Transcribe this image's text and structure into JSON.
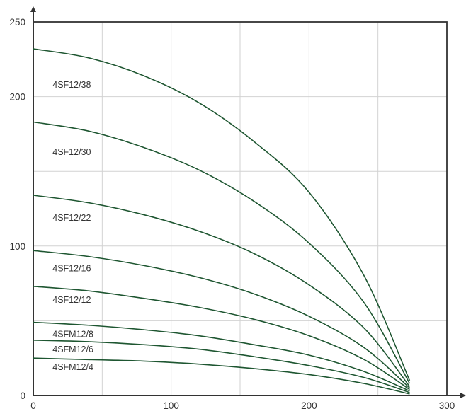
{
  "chart_data": {
    "type": "line",
    "title": "",
    "xlabel": "",
    "ylabel": "",
    "xlim": [
      0,
      300
    ],
    "ylim": [
      0,
      250
    ],
    "x_ticks": [
      0,
      100,
      200,
      300
    ],
    "y_ticks": [
      0,
      100,
      200,
      250
    ],
    "x_tick_labels": [
      "0",
      "100",
      "200",
      "300"
    ],
    "y_tick_labels": [
      "0",
      "100",
      "200",
      "250"
    ],
    "grid": true,
    "legend": "inline labels",
    "line_color": "#1e5631",
    "series": [
      {
        "name": "4SF12/38",
        "points": [
          [
            0,
            232
          ],
          [
            40,
            226
          ],
          [
            80,
            214
          ],
          [
            120,
            196
          ],
          [
            160,
            170
          ],
          [
            200,
            136
          ],
          [
            240,
            80
          ],
          [
            273,
            10
          ]
        ],
        "label_at": [
          14,
          206
        ]
      },
      {
        "name": "4SF12/30",
        "points": [
          [
            0,
            183
          ],
          [
            40,
            177
          ],
          [
            80,
            166
          ],
          [
            120,
            151
          ],
          [
            160,
            130
          ],
          [
            200,
            102
          ],
          [
            240,
            62
          ],
          [
            273,
            8
          ]
        ],
        "label_at": [
          14,
          161
        ]
      },
      {
        "name": "4SF12/22",
        "points": [
          [
            0,
            134
          ],
          [
            40,
            129
          ],
          [
            80,
            121
          ],
          [
            120,
            110
          ],
          [
            160,
            95
          ],
          [
            200,
            74
          ],
          [
            240,
            45
          ],
          [
            273,
            6
          ]
        ],
        "label_at": [
          14,
          117
        ]
      },
      {
        "name": "4SF12/16",
        "points": [
          [
            0,
            97
          ],
          [
            40,
            93
          ],
          [
            80,
            87
          ],
          [
            120,
            79
          ],
          [
            160,
            68
          ],
          [
            200,
            53
          ],
          [
            240,
            32
          ],
          [
            273,
            5
          ]
        ],
        "label_at": [
          14,
          83
        ]
      },
      {
        "name": "4SF12/12",
        "points": [
          [
            0,
            73
          ],
          [
            40,
            70
          ],
          [
            80,
            65
          ],
          [
            120,
            59
          ],
          [
            160,
            51
          ],
          [
            200,
            40
          ],
          [
            240,
            24
          ],
          [
            273,
            4
          ]
        ],
        "label_at": [
          14,
          62
        ]
      },
      {
        "name": "4SFM12/8",
        "points": [
          [
            0,
            49
          ],
          [
            40,
            47
          ],
          [
            80,
            44
          ],
          [
            120,
            40
          ],
          [
            160,
            34
          ],
          [
            200,
            27
          ],
          [
            240,
            16
          ],
          [
            273,
            3
          ]
        ],
        "label_at": [
          14,
          39
        ]
      },
      {
        "name": "4SFM12/6",
        "points": [
          [
            0,
            37
          ],
          [
            40,
            36
          ],
          [
            80,
            34
          ],
          [
            120,
            31
          ],
          [
            160,
            26
          ],
          [
            200,
            20
          ],
          [
            240,
            12
          ],
          [
            273,
            2
          ]
        ],
        "label_at": [
          14,
          29
        ]
      },
      {
        "name": "4SFM12/4",
        "points": [
          [
            0,
            25
          ],
          [
            40,
            24
          ],
          [
            80,
            23
          ],
          [
            120,
            21
          ],
          [
            160,
            18
          ],
          [
            200,
            14
          ],
          [
            240,
            8
          ],
          [
            273,
            1
          ]
        ],
        "label_at": [
          14,
          17
        ]
      }
    ]
  }
}
